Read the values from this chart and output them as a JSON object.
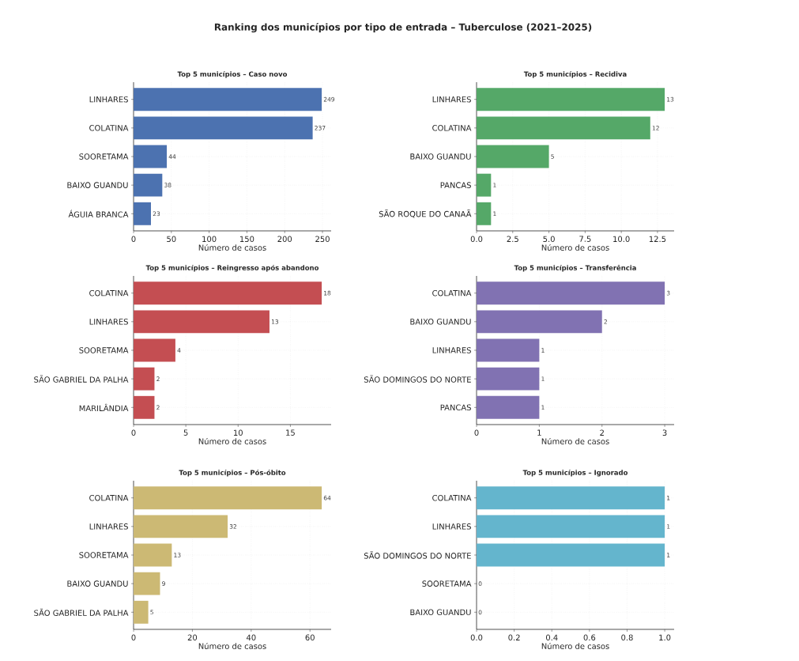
{
  "chart_data": [
    {
      "type": "bar",
      "orientation": "horizontal",
      "title": "Top 5 municípios – Caso novo",
      "annotations": [
        "Ranking dos municípios por tipo de entrada – Tuberculose (2021–2025)"
      ],
      "xlabel": "Número de casos",
      "categories": [
        "LINHARES",
        "COLATINA",
        "SOORETAMA",
        "BAIXO GUANDU",
        "ÁGUIA BRANCA"
      ],
      "values": [
        249,
        237,
        44,
        38,
        23
      ],
      "color": "#4c72b0",
      "xlim": [
        0,
        261.45
      ],
      "xticks": [
        0,
        50,
        100,
        150,
        200,
        250
      ],
      "grid": true,
      "data_labels": true
    },
    {
      "type": "bar",
      "orientation": "horizontal",
      "title": "Top 5 municípios – Recidiva",
      "xlabel": "Número de casos",
      "categories": [
        "LINHARES",
        "COLATINA",
        "BAIXO GUANDU",
        "PANCAS",
        "SÃO ROQUE DO CANAÃ"
      ],
      "values": [
        13,
        12,
        5,
        1,
        1
      ],
      "color": "#55a868",
      "xlim": [
        0,
        13.65
      ],
      "xticks": [
        {
          "value": 0,
          "label": "0.0"
        },
        2.5,
        {
          "value": 5,
          "label": "5.0"
        },
        7.5,
        {
          "value": 10,
          "label": "10.0"
        },
        12.5
      ],
      "grid": true,
      "data_labels": true
    },
    {
      "type": "bar",
      "orientation": "horizontal",
      "title": "Top 5 municípios – Reingresso após abandono",
      "xlabel": "Número de casos",
      "categories": [
        "COLATINA",
        "LINHARES",
        "SOORETAMA",
        "SÃO GABRIEL DA PALHA",
        "MARILÂNDIA"
      ],
      "values": [
        18,
        13,
        4,
        2,
        2
      ],
      "color": "#c44e52",
      "xlim": [
        0,
        18.9
      ],
      "xticks": [
        0,
        5,
        10,
        15
      ],
      "grid": true,
      "data_labels": true
    },
    {
      "type": "bar",
      "orientation": "horizontal",
      "title": "Top 5 municípios – Transferência",
      "xlabel": "Número de casos",
      "categories": [
        "COLATINA",
        "BAIXO GUANDU",
        "LINHARES",
        "SÃO DOMINGOS DO NORTE",
        "PANCAS"
      ],
      "values": [
        3,
        2,
        1,
        1,
        1
      ],
      "color": "#8172b2",
      "xlim": [
        0,
        3.15
      ],
      "xticks": [
        0,
        1,
        2,
        3
      ],
      "grid": true,
      "data_labels": true
    },
    {
      "type": "bar",
      "orientation": "horizontal",
      "title": "Top 5 municípios – Pós-óbito",
      "xlabel": "Número de casos",
      "categories": [
        "COLATINA",
        "LINHARES",
        "SOORETAMA",
        "BAIXO GUANDU",
        "SÃO GABRIEL DA PALHA"
      ],
      "values": [
        64,
        32,
        13,
        9,
        5
      ],
      "color": "#ccb974",
      "xlim": [
        0,
        67.2
      ],
      "xticks": [
        0,
        20,
        40,
        60
      ],
      "grid": true,
      "data_labels": true
    },
    {
      "type": "bar",
      "orientation": "horizontal",
      "title": "Top 5 municípios – Ignorado",
      "xlabel": "Número de casos",
      "categories": [
        "COLATINA",
        "LINHARES",
        "SÃO DOMINGOS DO NORTE",
        "SOORETAMA",
        "BAIXO GUANDU"
      ],
      "values": [
        1,
        1,
        1,
        0,
        0
      ],
      "color": "#64b5cd",
      "xlim": [
        0,
        1.05
      ],
      "xticks": [
        {
          "value": 0,
          "label": "0.0"
        },
        0.2,
        0.4,
        0.6,
        0.8,
        {
          "value": 1,
          "label": "1.0"
        }
      ],
      "grid": true,
      "data_labels": true
    }
  ]
}
